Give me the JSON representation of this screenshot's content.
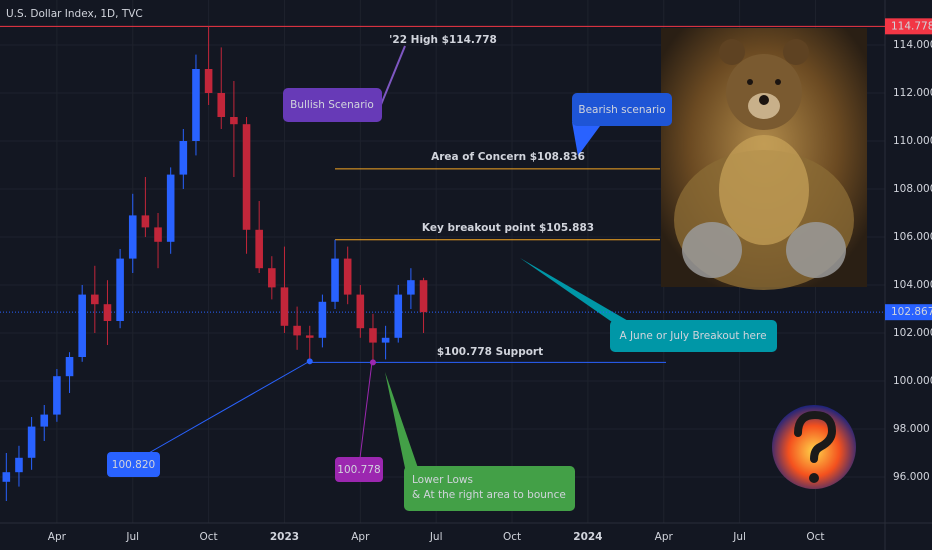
{
  "chart_data": {
    "type": "candlestick",
    "title": "U.S. Dollar Index, 1D, TVC",
    "categories": [
      null,
      null,
      null,
      null,
      "Apr",
      null,
      null,
      null,
      null,
      null,
      "Jul",
      null,
      null,
      null,
      null,
      null,
      "Oct",
      null,
      null,
      null,
      null,
      null,
      "2023",
      null,
      null,
      null,
      null,
      null,
      "Apr",
      null,
      null,
      null,
      null,
      null,
      "Jul",
      null,
      null,
      null,
      null,
      null,
      "Oct",
      null,
      null,
      null,
      null,
      null,
      "2024",
      null,
      null,
      null,
      null,
      null,
      "Apr",
      null,
      null,
      null,
      null,
      null,
      "Jul",
      null,
      null,
      null,
      null,
      null,
      "Oct",
      null,
      null,
      null,
      null,
      null
    ],
    "open": [
      95.8,
      96.2,
      96.8,
      98.1,
      98.6,
      100.2,
      101.0,
      103.6,
      103.2,
      102.5,
      105.1,
      106.9,
      106.4,
      105.8,
      108.6,
      110.0,
      113.0,
      112.0,
      111.0,
      110.7,
      106.3,
      104.7,
      103.9,
      102.3,
      101.9,
      101.8,
      103.3,
      105.1,
      103.6,
      102.2,
      101.6,
      101.8,
      103.6,
      104.2,
      null,
      null,
      null,
      null,
      null,
      null,
      null,
      null,
      null,
      null,
      null,
      null,
      null,
      null,
      null,
      null,
      null,
      null,
      null,
      null,
      null,
      null,
      null,
      null,
      null,
      null,
      null,
      null,
      null,
      null,
      null,
      null,
      null,
      null,
      null,
      null
    ],
    "high": [
      97.0,
      97.3,
      98.5,
      99.0,
      100.5,
      101.2,
      104.0,
      104.8,
      104.2,
      105.5,
      107.8,
      108.5,
      107.0,
      108.9,
      110.5,
      113.6,
      114.778,
      113.9,
      112.5,
      111.0,
      107.5,
      105.2,
      105.6,
      103.1,
      102.3,
      103.6,
      105.883,
      105.6,
      104.0,
      102.8,
      102.3,
      104.0,
      104.7,
      104.3,
      null,
      null,
      null,
      null,
      null,
      null,
      null,
      null,
      null,
      null,
      null,
      null,
      null,
      null,
      null,
      null,
      null,
      null,
      null,
      null,
      null,
      null,
      null,
      null,
      null,
      null,
      null,
      null,
      null,
      null,
      null,
      null,
      null,
      null,
      null,
      null
    ],
    "low": [
      95.0,
      95.6,
      96.3,
      97.5,
      98.3,
      99.5,
      100.8,
      102.0,
      101.5,
      102.2,
      104.5,
      106.0,
      104.7,
      105.3,
      108.0,
      109.4,
      111.5,
      110.5,
      108.5,
      105.3,
      104.5,
      103.4,
      102.0,
      101.3,
      100.82,
      101.4,
      103.0,
      103.2,
      101.8,
      100.778,
      100.9,
      101.6,
      103.0,
      102.0,
      null,
      null,
      null,
      null,
      null,
      null,
      null,
      null,
      null,
      null,
      null,
      null,
      null,
      null,
      null,
      null,
      null,
      null,
      null,
      null,
      null,
      null,
      null,
      null,
      null,
      null,
      null,
      null,
      null,
      null,
      null,
      null,
      null,
      null,
      null,
      null
    ],
    "close": [
      96.2,
      96.8,
      98.1,
      98.6,
      100.2,
      101.0,
      103.6,
      103.2,
      102.5,
      105.1,
      106.9,
      106.4,
      105.8,
      108.6,
      110.0,
      113.0,
      112.0,
      111.0,
      110.7,
      106.3,
      104.7,
      103.9,
      102.3,
      101.9,
      101.8,
      103.3,
      105.1,
      103.6,
      102.2,
      101.6,
      101.8,
      103.6,
      104.2,
      102.867,
      null,
      null,
      null,
      null,
      null,
      null,
      null,
      null,
      null,
      null,
      null,
      null,
      null,
      null,
      null,
      null,
      null,
      null,
      null,
      null,
      null,
      null,
      null,
      null,
      null,
      null,
      null,
      null,
      null,
      null,
      null,
      null,
      null,
      null,
      null,
      null
    ],
    "up_color": "#2962ff",
    "down_color": "#c2263a",
    "ylim": [
      94.083,
      115.875
    ],
    "yticks": [
      {
        "value": 96,
        "label": "96.000"
      },
      {
        "value": 98,
        "label": "98.000"
      },
      {
        "value": 100,
        "label": "100.000"
      },
      {
        "value": 102,
        "label": "102.000"
      },
      {
        "value": 104,
        "label": "104.000"
      },
      {
        "value": 106,
        "label": "106.000"
      },
      {
        "value": 108,
        "label": "108.000"
      },
      {
        "value": 110,
        "label": "110.000"
      },
      {
        "value": 112,
        "label": "112.000"
      },
      {
        "value": 114,
        "label": "114.000"
      }
    ],
    "grid": true,
    "levels": [
      {
        "value": 114.778,
        "color": "#f23645"
      },
      {
        "value": 102.867,
        "color": "#2962ff"
      },
      {
        "value": 108.836,
        "color": "#f5a623"
      },
      {
        "value": 105.883,
        "color": "#f5a623"
      },
      {
        "value": 100.778,
        "color": "#2962ff"
      }
    ],
    "points": [
      {
        "value": 100.82,
        "label": "100.820",
        "color": "#2962ff"
      },
      {
        "value": 100.778,
        "label": "100.778",
        "color": "#9c27b0"
      }
    ],
    "annotations": [
      "'22 High $114.778",
      "Bullish Scenario",
      "Bearish scenario",
      "Area of Concern $108.836",
      "Key breakout point $105.883",
      "A June or July Breakout here",
      "$100.778 Support",
      "Lower Lows",
      "& At the right area to bounce"
    ]
  }
}
